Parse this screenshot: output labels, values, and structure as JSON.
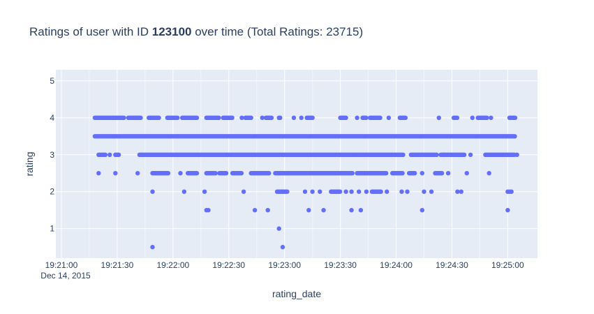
{
  "chart_data": {
    "type": "scatter",
    "title": {
      "prefix": "Ratings of user with ID ",
      "bold": "123100",
      "suffix": " over time (Total Ratings: 23715)"
    },
    "xlabel": "rating_date",
    "ylabel": "rating",
    "xaxis": {
      "kind": "time",
      "tick_labels": [
        "19:21:00",
        "19:21:30",
        "19:22:00",
        "19:22:30",
        "19:23:00",
        "19:23:30",
        "19:24:00",
        "19:24:30",
        "19:25:00"
      ],
      "date_label": "Dec 14, 2015",
      "range": [
        "2015-12-14 19:20:57",
        "2015-12-14 19:25:16"
      ]
    },
    "ylim": [
      0.2,
      5.3
    ],
    "yticks": [
      1,
      2,
      3,
      4,
      5
    ],
    "grid": true,
    "marker_color": "#636efa",
    "plot_bg": "#e5ecf6",
    "series": [
      {
        "y": 4,
        "segments": [
          [
            "19:21:18",
            "19:21:34"
          ],
          [
            "19:21:36",
            "19:21:43"
          ],
          [
            "19:21:47",
            "19:21:53"
          ],
          [
            "19:21:57",
            "19:22:03"
          ],
          [
            "19:22:05",
            "19:22:13"
          ],
          [
            "19:22:18",
            "19:22:25"
          ],
          [
            "19:22:27",
            "19:22:32"
          ],
          [
            "19:22:39",
            "19:22:42"
          ],
          [
            "19:22:50",
            "19:22:53"
          ],
          [
            "19:22:57",
            "19:22:58"
          ],
          [
            "19:23:12",
            "19:23:15"
          ],
          [
            "19:23:30",
            "19:23:33"
          ],
          [
            "19:23:42",
            "19:23:44"
          ],
          [
            "19:23:46",
            "19:23:52"
          ],
          [
            "19:24:02",
            "19:24:05"
          ],
          [
            "19:24:31",
            "19:24:33"
          ],
          [
            "19:24:44",
            "19:24:49"
          ],
          [
            "19:25:01",
            "19:25:04"
          ]
        ],
        "singles": [
          "19:21:41",
          "19:22:37",
          "19:22:48",
          "19:23:05",
          "19:23:09",
          "19:23:39",
          "19:23:56",
          "19:24:23",
          "19:24:41",
          "19:24:51"
        ]
      },
      {
        "y": 3.5,
        "segments": [
          [
            "19:21:18",
            "19:25:04"
          ]
        ],
        "singles": []
      },
      {
        "y": 3,
        "segments": [
          [
            "19:21:20",
            "19:21:24"
          ],
          [
            "19:21:29",
            "19:21:31"
          ],
          [
            "19:21:42",
            "19:24:04"
          ],
          [
            "19:24:08",
            "19:24:22"
          ],
          [
            "19:24:24",
            "19:24:37"
          ],
          [
            "19:24:48",
            "19:25:04"
          ]
        ],
        "singles": [
          "19:21:26",
          "19:24:26",
          "19:24:40",
          "19:25:05"
        ]
      },
      {
        "y": 2.5,
        "segments": [
          [
            "19:21:49",
            "19:21:58"
          ],
          [
            "19:22:08",
            "19:22:13"
          ],
          [
            "19:22:18",
            "19:22:23"
          ],
          [
            "19:22:25",
            "19:22:29"
          ],
          [
            "19:22:32",
            "19:22:37"
          ],
          [
            "19:22:42",
            "19:22:52"
          ],
          [
            "19:22:55",
            "19:23:37"
          ],
          [
            "19:23:39",
            "19:23:55"
          ],
          [
            "19:23:58",
            "19:24:04"
          ],
          [
            "19:24:07",
            "19:24:10"
          ],
          [
            "19:24:21",
            "19:24:25"
          ]
        ],
        "singles": [
          "19:21:20",
          "19:21:29",
          "19:21:41",
          "19:22:04",
          "19:24:14",
          "19:24:28",
          "19:24:38",
          "19:24:50"
        ]
      },
      {
        "y": 2,
        "segments": [
          [
            "19:22:56",
            "19:23:02"
          ],
          [
            "19:23:25",
            "19:23:30"
          ],
          [
            "19:23:47",
            "19:23:52"
          ]
        ],
        "singles": [
          "19:21:49",
          "19:22:06",
          "19:22:17",
          "19:22:38",
          "19:23:11",
          "19:23:15",
          "19:23:19",
          "19:23:33",
          "19:23:36",
          "19:23:40",
          "19:23:44",
          "19:23:55",
          "19:24:03",
          "19:24:06",
          "19:24:15",
          "19:24:19",
          "19:24:33",
          "19:24:35",
          "19:25:00",
          "19:25:01",
          "19:25:02"
        ]
      },
      {
        "y": 1.5,
        "segments": [],
        "singles": [
          "19:22:18",
          "19:22:19",
          "19:22:44",
          "19:22:51",
          "19:23:13",
          "19:23:21",
          "19:23:36",
          "19:23:41",
          "19:24:14",
          "19:25:00"
        ]
      },
      {
        "y": 1,
        "segments": [],
        "singles": [
          "19:22:57"
        ]
      },
      {
        "y": 0.5,
        "segments": [],
        "singles": [
          "19:21:49",
          "19:22:59"
        ]
      }
    ]
  }
}
